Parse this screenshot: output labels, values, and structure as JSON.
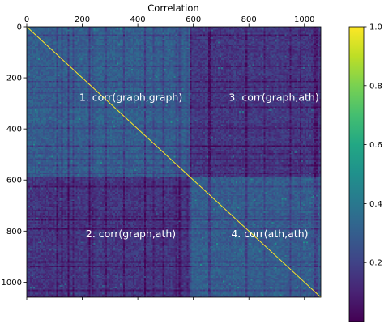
{
  "chart_data": {
    "type": "heatmap",
    "title": "Correlation",
    "matrix_size": 1059,
    "block_split": 585,
    "x_ticks": [
      0,
      200,
      400,
      600,
      800,
      1000
    ],
    "y_ticks": [
      0,
      200,
      400,
      600,
      800,
      1000
    ],
    "x_tick_position": "top",
    "colorbar": {
      "vmin": 0.0,
      "vmax": 1.0,
      "ticks": [
        "1.0",
        "0.8",
        "0.6",
        "0.4",
        "0.2"
      ],
      "tick_values": [
        1.0,
        0.8,
        0.6,
        0.4,
        0.2
      ],
      "colormap": "viridis"
    },
    "block_mean_correlation": {
      "graph_graph": 0.3,
      "graph_ath": 0.16,
      "ath_ath": 0.3,
      "diagonal": 1.0
    },
    "quadrant_labels": [
      {
        "text": "1. corr(graph,graph)",
        "x": 375,
        "y": 290
      },
      {
        "text": "3. corr(graph,ath)",
        "x": 890,
        "y": 290
      },
      {
        "text": "2. corr(graph,ath)",
        "x": 375,
        "y": 825
      },
      {
        "text": "4. corr(ath,ath)",
        "x": 875,
        "y": 825
      }
    ]
  }
}
